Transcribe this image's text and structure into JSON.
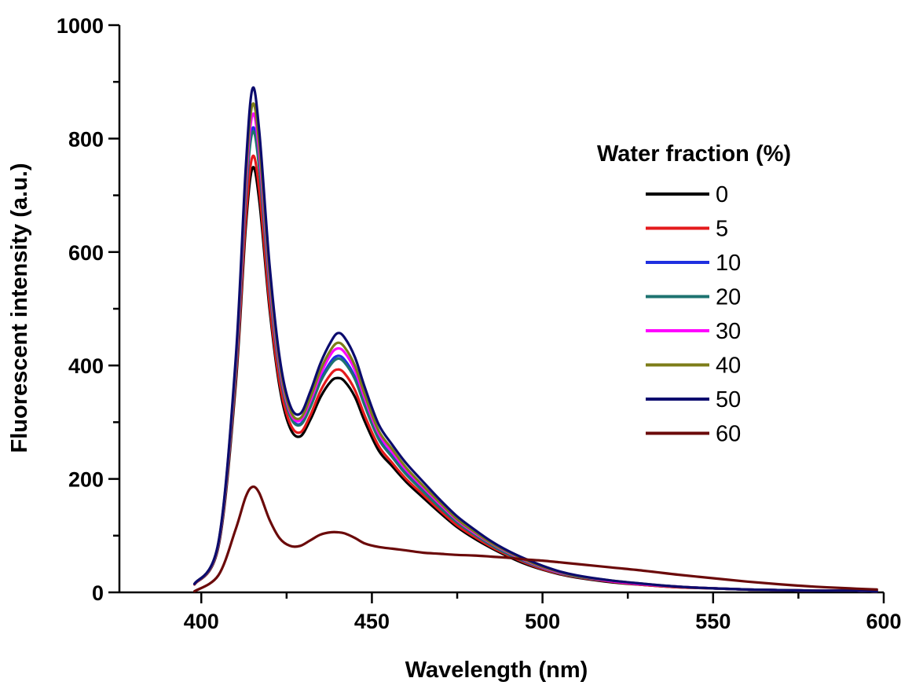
{
  "chart_data": {
    "type": "line",
    "title": "",
    "xlabel": "Wavelength (nm)",
    "ylabel": "Fluorescent intensity (a.u.)",
    "xlim": [
      376,
      600
    ],
    "ylim": [
      0,
      1000
    ],
    "x_ticks": [
      400,
      450,
      500,
      550,
      600
    ],
    "y_ticks": [
      0,
      200,
      400,
      600,
      800,
      1000
    ],
    "grid": false,
    "legend": {
      "title": "Water fraction (%)",
      "placement": "right"
    },
    "x": [
      398,
      405,
      410,
      413,
      415,
      417,
      420,
      423,
      426,
      429,
      432,
      435,
      438,
      440,
      442,
      445,
      448,
      452,
      456,
      460,
      465,
      470,
      475,
      480,
      485,
      490,
      495,
      500,
      505,
      510,
      520,
      530,
      540,
      550,
      560,
      570,
      580,
      590,
      598
    ],
    "series": [
      {
        "name": "0",
        "color": "#000000",
        "values": [
          14,
          80,
          360,
          640,
          748,
          690,
          500,
          360,
          290,
          275,
          305,
          345,
          372,
          378,
          372,
          345,
          300,
          250,
          222,
          195,
          167,
          140,
          115,
          95,
          78,
          63,
          50,
          40,
          32,
          26,
          18,
          13,
          9,
          7,
          5,
          4,
          3,
          3,
          2
        ]
      },
      {
        "name": "5",
        "color": "#e41a1c",
        "values": [
          14,
          82,
          370,
          655,
          768,
          708,
          510,
          368,
          298,
          282,
          313,
          356,
          385,
          393,
          386,
          357,
          310,
          258,
          228,
          200,
          172,
          144,
          118,
          98,
          80,
          65,
          52,
          41,
          33,
          27,
          19,
          13,
          9,
          7,
          5,
          4,
          3,
          3,
          2
        ]
      },
      {
        "name": "10",
        "color": "#1f2fe0",
        "values": [
          15,
          85,
          385,
          695,
          818,
          752,
          540,
          388,
          313,
          297,
          330,
          375,
          407,
          417,
          410,
          380,
          330,
          272,
          240,
          210,
          180,
          151,
          124,
          103,
          84,
          68,
          54,
          43,
          35,
          28,
          20,
          14,
          10,
          7,
          5,
          4,
          3,
          3,
          2
        ]
      },
      {
        "name": "20",
        "color": "#1d7370",
        "values": [
          15,
          84,
          382,
          690,
          811,
          746,
          536,
          386,
          311,
          295,
          327,
          372,
          402,
          412,
          405,
          376,
          327,
          270,
          238,
          208,
          178,
          149,
          123,
          102,
          83,
          67,
          54,
          43,
          34,
          28,
          20,
          14,
          10,
          7,
          5,
          4,
          3,
          3,
          2
        ]
      },
      {
        "name": "30",
        "color": "#ff00ff",
        "values": [
          15,
          86,
          393,
          710,
          842,
          773,
          552,
          396,
          318,
          303,
          338,
          385,
          420,
          430,
          423,
          392,
          340,
          280,
          247,
          216,
          185,
          155,
          127,
          105,
          86,
          70,
          56,
          44,
          35,
          29,
          20,
          14,
          10,
          7,
          5,
          4,
          3,
          3,
          2
        ]
      },
      {
        "name": "40",
        "color": "#7d7d18",
        "values": [
          15,
          87,
          398,
          725,
          860,
          788,
          562,
          402,
          322,
          307,
          344,
          393,
          428,
          440,
          432,
          400,
          347,
          285,
          252,
          220,
          188,
          158,
          129,
          107,
          87,
          71,
          57,
          45,
          36,
          29,
          21,
          15,
          10,
          7,
          5,
          4,
          3,
          3,
          2
        ]
      },
      {
        "name": "50",
        "color": "#0b0b6e",
        "values": [
          15,
          88,
          405,
          745,
          888,
          812,
          578,
          412,
          330,
          315,
          355,
          405,
          442,
          457,
          449,
          415,
          360,
          296,
          260,
          228,
          195,
          163,
          134,
          111,
          90,
          73,
          59,
          47,
          37,
          30,
          21,
          15,
          10,
          7,
          5,
          4,
          3,
          3,
          2
        ]
      },
      {
        "name": "60",
        "color": "#6b0a0a",
        "values": [
          2,
          30,
          110,
          168,
          186,
          175,
          128,
          95,
          82,
          82,
          92,
          102,
          106,
          106,
          104,
          96,
          86,
          80,
          77,
          74,
          70,
          68,
          66,
          65,
          63,
          61,
          58,
          56,
          53,
          50,
          44,
          38,
          31,
          25,
          19,
          14,
          10,
          7,
          5
        ]
      }
    ]
  }
}
